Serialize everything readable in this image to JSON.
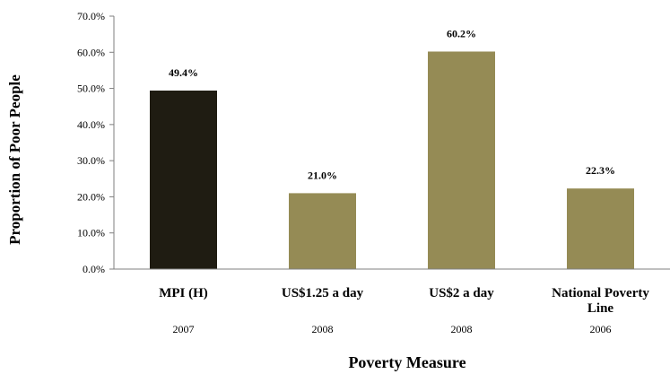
{
  "chart_data": {
    "type": "bar",
    "categories": [
      "MPI (H)",
      "US$1.25 a day",
      "US$2 a day",
      "National Poverty Line"
    ],
    "category_lines": [
      [
        "MPI (H)"
      ],
      [
        "US$1.25 a day"
      ],
      [
        "US$2 a day"
      ],
      [
        "National Poverty",
        "Line"
      ]
    ],
    "years": [
      "2007",
      "2008",
      "2008",
      "2006"
    ],
    "values": [
      49.4,
      21.0,
      60.2,
      22.3
    ],
    "value_labels": [
      "49.4%",
      "21.0%",
      "60.2%",
      "22.3%"
    ],
    "bar_colors": [
      "#1f1c12",
      "#958b55",
      "#958b55",
      "#958b55"
    ],
    "xlabel": "Poverty Measure",
    "ylabel": "Proportion  of Poor People",
    "ylim": [
      0,
      70
    ],
    "yticks": [
      0,
      10,
      20,
      30,
      40,
      50,
      60,
      70
    ],
    "ytick_labels": [
      "0.0%",
      "10.0%",
      "20.0%",
      "30.0%",
      "40.0%",
      "50.0%",
      "60.0%",
      "70.0%"
    ],
    "grid": false,
    "legend": "none"
  }
}
